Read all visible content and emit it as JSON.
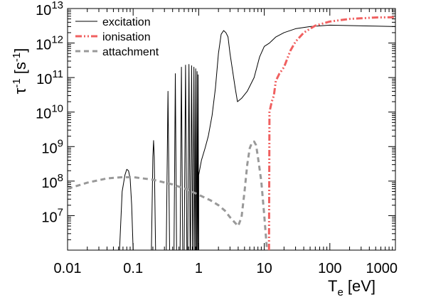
{
  "chart_data": {
    "type": "line",
    "xlabel": "T",
    "xlabel_sub": "e",
    "xlabel_unit": " [eV]",
    "ylabel": "τ",
    "ylabel_sup": "-1",
    "ylabel_unit": " [s",
    "ylabel_unit_sup": "-1",
    "ylabel_close": "]",
    "x_scale": "log",
    "y_scale": "log",
    "xlim": [
      0.01,
      1000
    ],
    "ylim": [
      1000000,
      10000000000000
    ],
    "x_ticks": [
      {
        "value": 0.01,
        "label": "0.01"
      },
      {
        "value": 0.1,
        "label": "0.1"
      },
      {
        "value": 1,
        "label": "1"
      },
      {
        "value": 10,
        "label": "10"
      },
      {
        "value": 100,
        "label": "100"
      },
      {
        "value": 1000,
        "label": "1000"
      }
    ],
    "y_ticks": [
      {
        "value": 10000000,
        "exp": "7"
      },
      {
        "value": 100000000,
        "exp": "8"
      },
      {
        "value": 1000000000,
        "exp": "9"
      },
      {
        "value": 10000000000,
        "exp": "10"
      },
      {
        "value": 100000000000,
        "exp": "11"
      },
      {
        "value": 1000000000000,
        "exp": "12"
      },
      {
        "value": 10000000000000,
        "exp": "13"
      }
    ],
    "y_tick_base": "10",
    "grid": false,
    "legend_position": "top-left",
    "series": [
      {
        "name": "excitation",
        "color": "#000000",
        "style": "solid",
        "points": [
          [
            0.062,
            1000000
          ],
          [
            0.068,
            50000000
          ],
          [
            0.075,
            150000000
          ],
          [
            0.08,
            220000000
          ],
          [
            0.085,
            200000000
          ],
          [
            0.09,
            120000000
          ],
          [
            0.095,
            20000000
          ],
          [
            0.1,
            1000000
          ],
          [
            0.19,
            1000000
          ],
          [
            0.2,
            500000000
          ],
          [
            0.205,
            1500000000
          ],
          [
            0.21,
            500000000
          ],
          [
            0.22,
            1000000
          ],
          [
            0.32,
            1000000
          ],
          [
            0.34,
            40000000000
          ],
          [
            0.36,
            1000000
          ],
          [
            0.42,
            1000000
          ],
          [
            0.44,
            130000000000
          ],
          [
            0.46,
            1000000
          ],
          [
            0.52,
            1000000
          ],
          [
            0.545,
            200000000000
          ],
          [
            0.57,
            1000000
          ],
          [
            0.6,
            1000000
          ],
          [
            0.63,
            230000000000
          ],
          [
            0.66,
            1000000
          ],
          [
            0.68,
            1000000
          ],
          [
            0.71,
            240000000000
          ],
          [
            0.74,
            1000000
          ],
          [
            0.75,
            1000000
          ],
          [
            0.78,
            220000000000
          ],
          [
            0.81,
            1000000
          ],
          [
            0.82,
            1000000
          ],
          [
            0.845,
            200000000000
          ],
          [
            0.87,
            1000000
          ],
          [
            0.88,
            1000000
          ],
          [
            0.9,
            180000000000
          ],
          [
            0.92,
            1000000
          ],
          [
            0.93,
            1000000
          ],
          [
            0.945,
            150000000000
          ],
          [
            0.96,
            1000000
          ],
          [
            0.965,
            1000000
          ],
          [
            0.98,
            120000000000
          ],
          [
            0.995,
            1000000
          ],
          [
            1.0,
            1000000
          ],
          [
            1.0,
            150000000
          ],
          [
            1.1,
            400000000
          ],
          [
            1.25,
            900000000
          ],
          [
            1.4,
            2000000000
          ],
          [
            1.6,
            8000000000
          ],
          [
            1.8,
            50000000000
          ],
          [
            2.0,
            500000000000
          ],
          [
            2.2,
            1800000000000
          ],
          [
            2.4,
            2300000000000
          ],
          [
            2.6,
            2000000000000
          ],
          [
            2.8,
            1500000000000
          ],
          [
            3.0,
            500000000000
          ],
          [
            3.3,
            150000000000
          ],
          [
            3.6,
            50000000000
          ],
          [
            3.9,
            20000000000
          ],
          [
            4.5,
            25000000000
          ],
          [
            5.5,
            40000000000
          ],
          [
            7.0,
            100000000000
          ],
          [
            8.5,
            400000000000
          ],
          [
            10,
            800000000000
          ],
          [
            12,
            1000000000000
          ],
          [
            15,
            1500000000000
          ],
          [
            20,
            2000000000000
          ],
          [
            30,
            2600000000000
          ],
          [
            50,
            3000000000000
          ],
          [
            100,
            3300000000000
          ],
          [
            200,
            3200000000000
          ],
          [
            500,
            3100000000000
          ],
          [
            1000,
            3000000000000
          ]
        ]
      },
      {
        "name": "ionisation",
        "color": "#f06060",
        "style": "dashdot",
        "points": [
          [
            11.8,
            1000000
          ],
          [
            12,
            10000000000
          ],
          [
            13,
            20000000000
          ],
          [
            14,
            30000000000
          ],
          [
            15,
            80000000000
          ],
          [
            17,
            130000000000
          ],
          [
            20,
            200000000000
          ],
          [
            25,
            600000000000
          ],
          [
            30,
            1100000000000
          ],
          [
            40,
            2000000000000
          ],
          [
            60,
            3200000000000
          ],
          [
            100,
            4200000000000
          ],
          [
            200,
            5000000000000
          ],
          [
            500,
            5500000000000
          ],
          [
            1000,
            5600000000000
          ]
        ]
      },
      {
        "name": "attachment",
        "color": "#999999",
        "style": "dashed",
        "points": [
          [
            0.01,
            60000000
          ],
          [
            0.02,
            90000000
          ],
          [
            0.04,
            120000000
          ],
          [
            0.07,
            130000000
          ],
          [
            0.1,
            130000000
          ],
          [
            0.2,
            110000000
          ],
          [
            0.4,
            80000000
          ],
          [
            0.7,
            55000000
          ],
          [
            1.0,
            40000000
          ],
          [
            1.5,
            28000000
          ],
          [
            2.0,
            20000000
          ],
          [
            2.5,
            14000000
          ],
          [
            3.0,
            9000000
          ],
          [
            3.5,
            6500000
          ],
          [
            4.0,
            5000000
          ],
          [
            4.5,
            9000000
          ],
          [
            5.0,
            50000000
          ],
          [
            5.5,
            300000000
          ],
          [
            6.0,
            900000000
          ],
          [
            6.5,
            1300000000
          ],
          [
            7.0,
            1400000000
          ],
          [
            7.5,
            1100000000
          ],
          [
            8.0,
            500000000
          ],
          [
            9.0,
            100000000
          ],
          [
            10,
            10000000
          ],
          [
            11,
            1000000
          ]
        ]
      }
    ]
  }
}
